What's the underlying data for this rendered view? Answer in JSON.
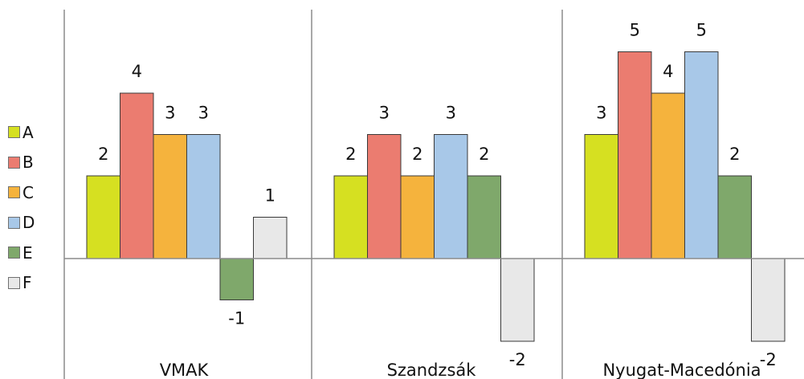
{
  "chart_data": {
    "type": "bar",
    "title": "",
    "xlabel": "",
    "ylabel": "",
    "ylim": [
      -2,
      5
    ],
    "grid": false,
    "legend_position": "left",
    "categories": [
      "VMAK",
      "Szandzsák",
      "Nyugat-Macedónia"
    ],
    "series": [
      {
        "name": "A",
        "color": "#d6e021",
        "values": [
          2,
          2,
          3
        ]
      },
      {
        "name": "B",
        "color": "#eb7c70",
        "values": [
          4,
          3,
          5
        ]
      },
      {
        "name": "C",
        "color": "#f5b33d",
        "values": [
          3,
          2,
          4
        ]
      },
      {
        "name": "D",
        "color": "#a8c8e8",
        "values": [
          3,
          3,
          5
        ]
      },
      {
        "name": "E",
        "color": "#7fa86b",
        "values": [
          -1,
          2,
          2
        ]
      },
      {
        "name": "F",
        "color": "#e8e8e8",
        "values": [
          1,
          -2,
          -2
        ]
      }
    ]
  }
}
